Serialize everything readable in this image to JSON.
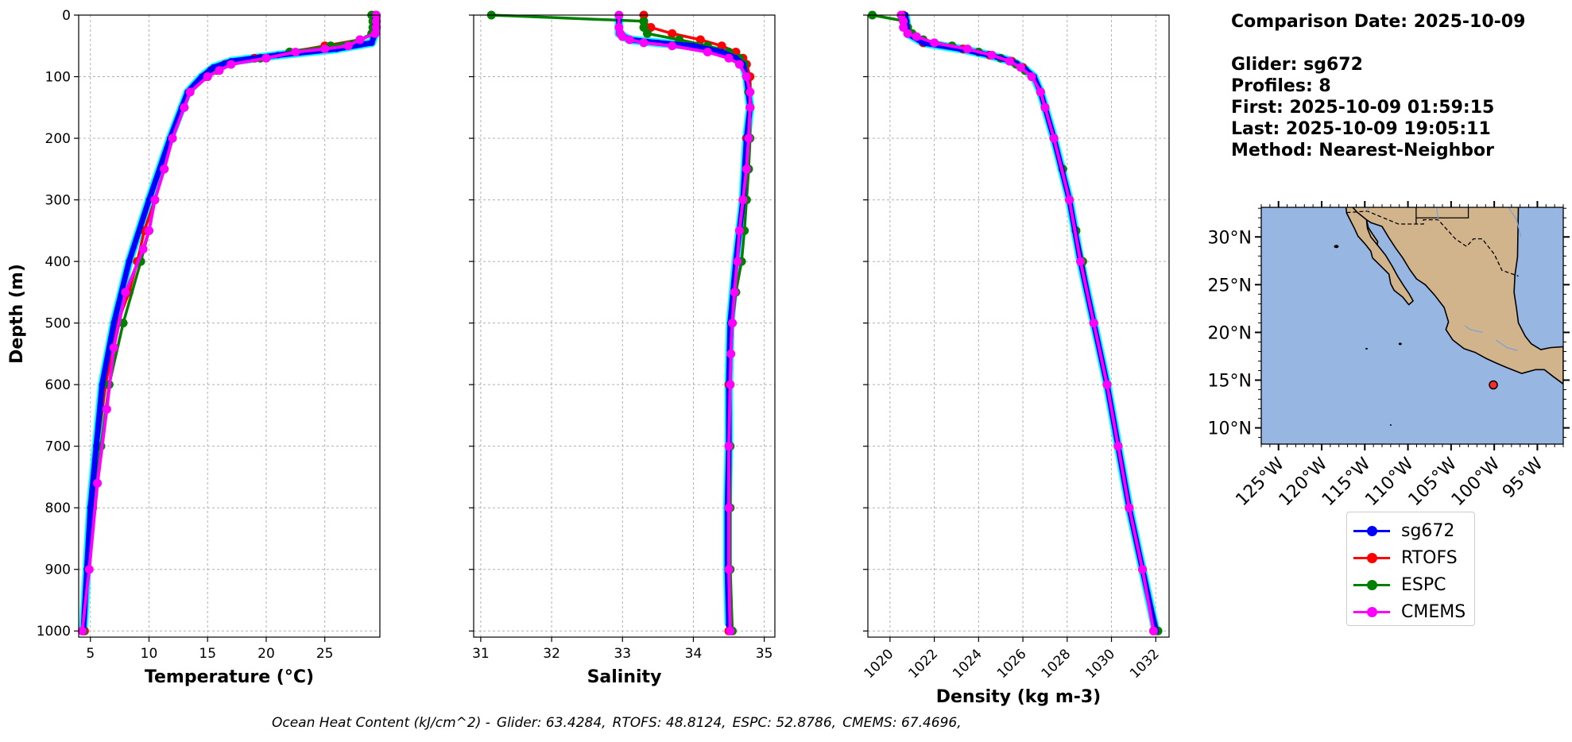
{
  "info": {
    "comparison": "Comparison Date: 2025-10-09",
    "glider": "Glider: sg672",
    "profiles": "Profiles: 8",
    "first": "First: 2025-10-09 01:59:15",
    "last": "Last: 2025-10-09 19:05:11",
    "method": "Method: Nearest-Neighbor"
  },
  "ohc": {
    "prefix": "Ocean Heat Content (kJ/cm^2) -",
    "glider": "Glider: 63.4284,",
    "rtofs": "RTOFS: 48.8124,",
    "espc": "ESPC: 52.8786,",
    "cmems": "CMEMS: 67.4696,"
  },
  "colors": {
    "sg672": "#0000ff",
    "RTOFS": "#ff0000",
    "ESPC": "#008000",
    "CMEMS": "#ff00ff",
    "cyan": "#00ffff",
    "ocean": "#97b6e1",
    "land": "#d2b48c"
  },
  "legend": {
    "items": [
      {
        "key": "sg672",
        "label": "sg672"
      },
      {
        "key": "RTOFS",
        "label": "RTOFS"
      },
      {
        "key": "ESPC",
        "label": "ESPC"
      },
      {
        "key": "CMEMS",
        "label": "CMEMS"
      }
    ]
  },
  "chart_data": [
    {
      "type": "line",
      "xlabel": "Temperature (°C)",
      "ylabel": "Depth (m)",
      "xlim": [
        4,
        29.7
      ],
      "ylim": [
        1010,
        0
      ],
      "grid": true,
      "xticks": [
        5,
        10,
        15,
        20,
        25
      ],
      "yticks": [
        0,
        100,
        200,
        300,
        400,
        500,
        600,
        700,
        800,
        900,
        1000
      ],
      "series": [
        {
          "name": "sg672",
          "depth": [
            0,
            30,
            45,
            55,
            65,
            75,
            85,
            100,
            125,
            150,
            200,
            300,
            400,
            500,
            600,
            700,
            800,
            900,
            1000
          ],
          "values": [
            29.3,
            29.3,
            29.0,
            26.0,
            21.0,
            17.0,
            15.5,
            14.5,
            13.3,
            12.8,
            11.8,
            10.0,
            8.3,
            7.0,
            6.0,
            5.5,
            5.0,
            4.7,
            4.4
          ]
        },
        {
          "name": "RTOFS",
          "depth": [
            0,
            30,
            40,
            50,
            60,
            70,
            80,
            90,
            100,
            125,
            150,
            200,
            250,
            300,
            350,
            400,
            450,
            500,
            600,
            700,
            800,
            900,
            1000
          ],
          "values": [
            29.3,
            29.2,
            28.0,
            25.0,
            22.0,
            19.0,
            16.5,
            15.3,
            14.8,
            13.5,
            13.0,
            12.0,
            11.3,
            10.5,
            9.6,
            9.0,
            8.3,
            7.3,
            6.3,
            5.6,
            5.1,
            4.8,
            4.5
          ]
        },
        {
          "name": "ESPC",
          "depth": [
            0,
            10,
            20,
            30,
            40,
            50,
            60,
            70,
            80,
            90,
            100,
            125,
            150,
            200,
            250,
            300,
            350,
            400,
            500,
            600,
            700,
            800,
            900,
            1000
          ],
          "values": [
            29.0,
            29.1,
            29.1,
            29.0,
            28.0,
            25.5,
            22.0,
            19.5,
            17.0,
            15.8,
            15.0,
            13.5,
            13.0,
            12.0,
            11.3,
            10.5,
            10.0,
            9.3,
            7.8,
            6.6,
            5.9,
            5.2,
            4.8,
            4.4
          ]
        },
        {
          "name": "CMEMS",
          "depth": [
            0,
            10,
            20,
            30,
            40,
            50,
            55,
            60,
            70,
            80,
            90,
            100,
            125,
            150,
            200,
            250,
            300,
            350,
            380,
            450,
            540,
            640,
            760,
            900,
            1000
          ],
          "values": [
            29.4,
            29.4,
            29.4,
            29.3,
            28.0,
            27.0,
            25.0,
            22.5,
            20.0,
            17.0,
            16.0,
            15.0,
            13.5,
            13.0,
            12.0,
            11.3,
            10.5,
            10.0,
            9.5,
            8.0,
            7.0,
            6.4,
            5.6,
            4.9,
            4.3
          ]
        }
      ]
    },
    {
      "type": "line",
      "xlabel": "Salinity",
      "ylabel": "",
      "xlim": [
        30.9,
        35.15
      ],
      "ylim": [
        1010,
        0
      ],
      "grid": true,
      "xticks": [
        31,
        32,
        33,
        34,
        35
      ],
      "series": [
        {
          "name": "sg672",
          "depth": [
            0,
            30,
            40,
            45,
            50,
            60,
            70,
            80,
            100,
            150,
            200,
            300,
            400,
            500,
            600,
            700,
            800,
            900,
            990
          ],
          "values": [
            32.95,
            32.95,
            33.1,
            33.5,
            34.0,
            34.4,
            34.6,
            34.7,
            34.75,
            34.8,
            34.75,
            34.7,
            34.6,
            34.52,
            34.5,
            34.5,
            34.48,
            34.48,
            34.5
          ]
        },
        {
          "name": "RTOFS",
          "depth": [
            0,
            10,
            20,
            30,
            40,
            50,
            60,
            70,
            80,
            100,
            150,
            200,
            300,
            400,
            500,
            600,
            700,
            800,
            900,
            1000
          ],
          "values": [
            33.3,
            33.3,
            33.4,
            33.7,
            34.1,
            34.4,
            34.6,
            34.7,
            34.75,
            34.8,
            34.8,
            34.75,
            34.7,
            34.62,
            34.55,
            34.5,
            34.5,
            34.5,
            34.5,
            34.5
          ]
        },
        {
          "name": "ESPC",
          "depth": [
            0,
            10,
            20,
            30,
            40,
            50,
            60,
            70,
            80,
            100,
            125,
            150,
            200,
            250,
            300,
            350,
            400,
            450,
            500,
            600,
            700,
            800,
            900,
            1000
          ],
          "values": [
            31.15,
            33.3,
            33.3,
            33.35,
            33.8,
            34.2,
            34.5,
            34.65,
            34.72,
            34.75,
            34.78,
            34.8,
            34.8,
            34.78,
            34.75,
            34.72,
            34.68,
            34.6,
            34.55,
            34.52,
            34.52,
            34.52,
            34.52,
            34.55
          ]
        },
        {
          "name": "CMEMS",
          "depth": [
            0,
            20,
            30,
            35,
            40,
            45,
            50,
            60,
            70,
            80,
            100,
            125,
            150,
            200,
            250,
            300,
            350,
            400,
            450,
            500,
            550,
            600,
            700,
            800,
            900,
            1000
          ],
          "values": [
            32.95,
            32.95,
            32.97,
            33.0,
            33.1,
            33.3,
            33.7,
            34.2,
            34.5,
            34.65,
            34.75,
            34.8,
            34.8,
            34.78,
            34.75,
            34.7,
            34.65,
            34.62,
            34.58,
            34.55,
            34.53,
            34.52,
            34.5,
            34.5,
            34.5,
            34.52
          ]
        }
      ]
    },
    {
      "type": "line",
      "xlabel": "Density (kg m-3)",
      "ylabel": "",
      "xlim": [
        1019,
        1032.6
      ],
      "ylim": [
        1010,
        0
      ],
      "grid": true,
      "xticks": [
        1020,
        1022,
        1024,
        1026,
        1028,
        1030,
        1032
      ],
      "series": [
        {
          "name": "sg672",
          "depth": [
            0,
            30,
            45,
            55,
            65,
            75,
            85,
            100,
            125,
            150,
            200,
            300,
            400,
            500,
            600,
            700,
            800,
            900,
            1000
          ],
          "values": [
            1020.7,
            1020.8,
            1021.5,
            1023.2,
            1024.5,
            1025.5,
            1026.0,
            1026.5,
            1026.8,
            1027.0,
            1027.4,
            1028.1,
            1028.6,
            1029.2,
            1029.8,
            1030.3,
            1030.8,
            1031.4,
            1032.0
          ]
        },
        {
          "name": "RTOFS",
          "depth": [
            0,
            30,
            45,
            55,
            65,
            75,
            85,
            100,
            125,
            150,
            200,
            300,
            400,
            500,
            600,
            700,
            800,
            900,
            1000
          ],
          "values": [
            1020.6,
            1020.8,
            1021.5,
            1023.3,
            1024.5,
            1025.5,
            1026.0,
            1026.4,
            1026.8,
            1027.0,
            1027.4,
            1028.1,
            1028.7,
            1029.2,
            1029.8,
            1030.3,
            1030.8,
            1031.4,
            1031.9
          ]
        },
        {
          "name": "ESPC",
          "depth": [
            0,
            10,
            20,
            30,
            40,
            50,
            60,
            70,
            80,
            90,
            100,
            125,
            150,
            200,
            250,
            300,
            350,
            400,
            500,
            600,
            700,
            800,
            900,
            1000
          ],
          "values": [
            1019.2,
            1020.7,
            1020.8,
            1021.0,
            1021.5,
            1022.8,
            1024.0,
            1025.0,
            1025.7,
            1026.1,
            1026.4,
            1026.8,
            1027.0,
            1027.4,
            1027.8,
            1028.1,
            1028.4,
            1028.7,
            1029.2,
            1029.8,
            1030.3,
            1030.8,
            1031.4,
            1032.1
          ]
        },
        {
          "name": "CMEMS",
          "depth": [
            0,
            10,
            20,
            30,
            35,
            45,
            55,
            65,
            75,
            85,
            100,
            125,
            150,
            200,
            300,
            400,
            500,
            600,
            700,
            800,
            900,
            1000
          ],
          "values": [
            1020.5,
            1020.6,
            1020.6,
            1020.8,
            1021.2,
            1022.0,
            1023.5,
            1024.6,
            1025.4,
            1025.9,
            1026.4,
            1026.8,
            1027.0,
            1027.4,
            1028.1,
            1028.6,
            1029.2,
            1029.8,
            1030.3,
            1030.8,
            1031.4,
            1031.9
          ]
        }
      ]
    }
  ],
  "map": {
    "lon_range": [
      -127,
      -92
    ],
    "lat_range": [
      8.3,
      33.1
    ],
    "lat_ticks": [
      {
        "value": 10,
        "label": "10°N"
      },
      {
        "value": 15,
        "label": "15°N"
      },
      {
        "value": 20,
        "label": "20°N"
      },
      {
        "value": 25,
        "label": "25°N"
      },
      {
        "value": 30,
        "label": "30°N"
      }
    ],
    "lon_ticks": [
      {
        "value": -125,
        "label": "125°W"
      },
      {
        "value": -120,
        "label": "120°W"
      },
      {
        "value": -115,
        "label": "115°W"
      },
      {
        "value": -110,
        "label": "110°W"
      },
      {
        "value": -105,
        "label": "105°W"
      },
      {
        "value": -100,
        "label": "100°W"
      },
      {
        "value": -95,
        "label": "95°W"
      }
    ],
    "glider_position": {
      "lon": -100.1,
      "lat": 14.5
    }
  }
}
